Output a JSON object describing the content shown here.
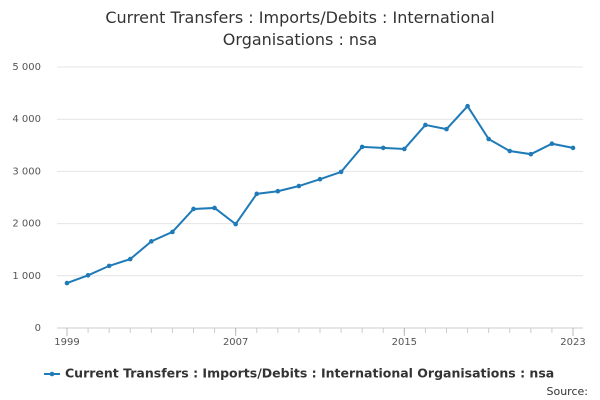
{
  "chart_data": {
    "type": "line",
    "title": "Current Transfers : Imports/Debits : International Organisations : nsa",
    "x": [
      1999,
      2000,
      2001,
      2002,
      2003,
      2004,
      2005,
      2006,
      2007,
      2008,
      2009,
      2010,
      2011,
      2012,
      2013,
      2014,
      2015,
      2016,
      2017,
      2018,
      2019,
      2020,
      2021,
      2022,
      2023
    ],
    "series": [
      {
        "name": "Current Transfers : Imports/Debits : International Organisations : nsa",
        "color": "#1f7ab8",
        "values": [
          860,
          1010,
          1190,
          1320,
          1660,
          1840,
          2280,
          2300,
          1990,
          2570,
          2620,
          2720,
          2850,
          2990,
          3470,
          3450,
          3430,
          3890,
          3810,
          4250,
          3620,
          3390,
          3330,
          3530,
          3450
        ]
      }
    ],
    "xlim": [
      1999,
      2023
    ],
    "xticks": [
      1999,
      2007,
      2015,
      2023
    ],
    "ylim": [
      0,
      5000
    ],
    "yticks": [
      {
        "value": 0,
        "label": "0"
      },
      {
        "value": 1000,
        "label": "1 000"
      },
      {
        "value": 2000,
        "label": "2 000"
      },
      {
        "value": 3000,
        "label": "3 000"
      },
      {
        "value": 4000,
        "label": "4 000"
      },
      {
        "value": 5000,
        "label": "5 000"
      }
    ],
    "grid": true,
    "legend": "bottom",
    "source": "Source:"
  }
}
